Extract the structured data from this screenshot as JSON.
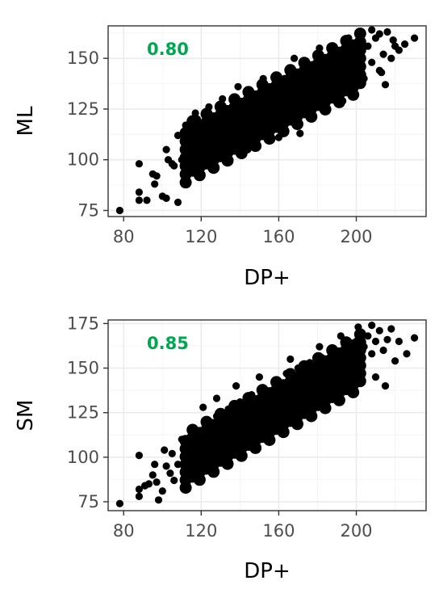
{
  "chart_data": [
    {
      "type": "scatter",
      "xlabel": "DP+",
      "ylabel": "ML",
      "annotation": "0.80",
      "xlim": [
        72,
        236
      ],
      "ylim": [
        72,
        166
      ],
      "xticks": [
        80,
        120,
        160,
        200
      ],
      "yticks": [
        75,
        100,
        125,
        150
      ],
      "grid": true,
      "point_color": "#000000",
      "annotation_color": "#00a651",
      "points": [
        [
          78,
          75
        ],
        [
          88,
          80
        ],
        [
          88,
          84
        ],
        [
          88,
          98
        ],
        [
          92,
          80
        ],
        [
          95,
          93
        ],
        [
          96,
          88
        ],
        [
          97,
          92
        ],
        [
          100,
          82
        ],
        [
          102,
          81
        ],
        [
          102,
          105
        ],
        [
          103,
          100
        ],
        [
          105,
          98
        ],
        [
          106,
          97
        ],
        [
          108,
          79
        ],
        [
          108,
          112
        ],
        [
          110,
          100
        ],
        [
          112,
          117
        ],
        [
          113,
          106
        ],
        [
          115,
          103
        ],
        [
          118,
          120
        ],
        [
          120,
          104
        ],
        [
          121,
          111
        ],
        [
          123,
          118
        ],
        [
          125,
          107
        ],
        [
          126,
          114
        ],
        [
          128,
          121
        ],
        [
          130,
          110
        ],
        [
          131,
          119
        ],
        [
          133,
          124
        ],
        [
          135,
          113
        ],
        [
          136,
          121
        ],
        [
          138,
          127
        ],
        [
          140,
          116
        ],
        [
          141,
          123
        ],
        [
          143,
          129
        ],
        [
          145,
          118
        ],
        [
          146,
          126
        ],
        [
          148,
          132
        ],
        [
          150,
          121
        ],
        [
          151,
          128
        ],
        [
          153,
          135
        ],
        [
          155,
          124
        ],
        [
          156,
          131
        ],
        [
          158,
          137
        ],
        [
          160,
          126
        ],
        [
          161,
          133
        ],
        [
          163,
          140
        ],
        [
          165,
          129
        ],
        [
          166,
          136
        ],
        [
          168,
          142
        ],
        [
          170,
          131
        ],
        [
          171,
          138
        ],
        [
          173,
          144
        ],
        [
          175,
          134
        ],
        [
          176,
          141
        ],
        [
          178,
          147
        ],
        [
          180,
          137
        ],
        [
          181,
          143
        ],
        [
          183,
          149
        ],
        [
          185,
          139
        ],
        [
          186,
          146
        ],
        [
          188,
          151
        ],
        [
          190,
          142
        ],
        [
          191,
          148
        ],
        [
          193,
          153
        ],
        [
          195,
          144
        ],
        [
          196,
          150
        ],
        [
          198,
          155
        ],
        [
          200,
          146
        ],
        [
          202,
          152
        ],
        [
          204,
          140
        ],
        [
          206,
          156
        ],
        [
          208,
          148
        ],
        [
          210,
          160
        ],
        [
          212,
          144
        ],
        [
          214,
          152
        ],
        [
          216,
          163
        ],
        [
          218,
          150
        ],
        [
          220,
          156
        ],
        [
          222,
          154
        ],
        [
          225,
          157
        ],
        [
          230,
          160
        ],
        [
          208,
          164
        ],
        [
          212,
          162
        ],
        [
          219,
          159
        ],
        [
          213,
          143
        ],
        [
          215,
          137
        ],
        [
          193,
          129
        ],
        [
          176,
          122
        ],
        [
          171,
          113
        ],
        [
          160,
          111
        ],
        [
          144,
          105
        ],
        [
          126,
          98
        ],
        [
          118,
          95
        ],
        [
          152,
          140
        ],
        [
          139,
          136
        ],
        [
          131,
          130
        ],
        [
          124,
          126
        ],
        [
          117,
          123
        ],
        [
          168,
          150
        ],
        [
          181,
          155
        ],
        [
          196,
          160
        ]
      ]
    },
    {
      "type": "scatter",
      "xlabel": "DP+",
      "ylabel": "SM",
      "annotation": "0.85",
      "xlim": [
        72,
        236
      ],
      "ylim": [
        70,
        177
      ],
      "xticks": [
        80,
        120,
        160,
        200
      ],
      "yticks": [
        75,
        100,
        125,
        150,
        175
      ],
      "grid": true,
      "point_color": "#000000",
      "annotation_color": "#00a651",
      "points": [
        [
          78,
          74
        ],
        [
          88,
          78
        ],
        [
          88,
          82
        ],
        [
          88,
          101
        ],
        [
          91,
          84
        ],
        [
          93,
          85
        ],
        [
          95,
          90
        ],
        [
          96,
          96
        ],
        [
          97,
          86
        ],
        [
          98,
          76
        ],
        [
          100,
          81
        ],
        [
          101,
          104
        ],
        [
          102,
          95
        ],
        [
          104,
          91
        ],
        [
          105,
          102
        ],
        [
          106,
          87
        ],
        [
          108,
          96
        ],
        [
          110,
          110
        ],
        [
          112,
          100
        ],
        [
          114,
          108
        ],
        [
          116,
          114
        ],
        [
          118,
          104
        ],
        [
          120,
          112
        ],
        [
          122,
          119
        ],
        [
          124,
          108
        ],
        [
          126,
          116
        ],
        [
          128,
          123
        ],
        [
          130,
          112
        ],
        [
          132,
          120
        ],
        [
          134,
          127
        ],
        [
          136,
          116
        ],
        [
          138,
          124
        ],
        [
          140,
          131
        ],
        [
          142,
          120
        ],
        [
          144,
          128
        ],
        [
          146,
          135
        ],
        [
          148,
          124
        ],
        [
          150,
          132
        ],
        [
          152,
          139
        ],
        [
          154,
          128
        ],
        [
          156,
          136
        ],
        [
          158,
          143
        ],
        [
          160,
          132
        ],
        [
          162,
          140
        ],
        [
          164,
          147
        ],
        [
          166,
          136
        ],
        [
          168,
          144
        ],
        [
          170,
          150
        ],
        [
          172,
          140
        ],
        [
          174,
          147
        ],
        [
          176,
          153
        ],
        [
          178,
          143
        ],
        [
          180,
          150
        ],
        [
          182,
          156
        ],
        [
          184,
          146
        ],
        [
          186,
          153
        ],
        [
          188,
          159
        ],
        [
          190,
          149
        ],
        [
          192,
          156
        ],
        [
          194,
          162
        ],
        [
          196,
          152
        ],
        [
          198,
          159
        ],
        [
          200,
          165
        ],
        [
          202,
          155
        ],
        [
          204,
          162
        ],
        [
          206,
          168
        ],
        [
          208,
          158
        ],
        [
          210,
          165
        ],
        [
          212,
          171
        ],
        [
          214,
          160
        ],
        [
          216,
          166
        ],
        [
          218,
          172
        ],
        [
          220,
          154
        ],
        [
          222,
          165
        ],
        [
          226,
          158
        ],
        [
          230,
          167
        ],
        [
          208,
          174
        ],
        [
          201,
          173
        ],
        [
          215,
          140
        ],
        [
          210,
          145
        ],
        [
          196,
          141
        ],
        [
          181,
          131
        ],
        [
          173,
          124
        ],
        [
          160,
          118
        ],
        [
          147,
          110
        ],
        [
          133,
          103
        ],
        [
          120,
          99
        ],
        [
          114,
          95
        ],
        [
          150,
          145
        ],
        [
          138,
          140
        ],
        [
          128,
          133
        ],
        [
          121,
          128
        ],
        [
          166,
          155
        ],
        [
          181,
          162
        ],
        [
          192,
          168
        ]
      ]
    }
  ]
}
